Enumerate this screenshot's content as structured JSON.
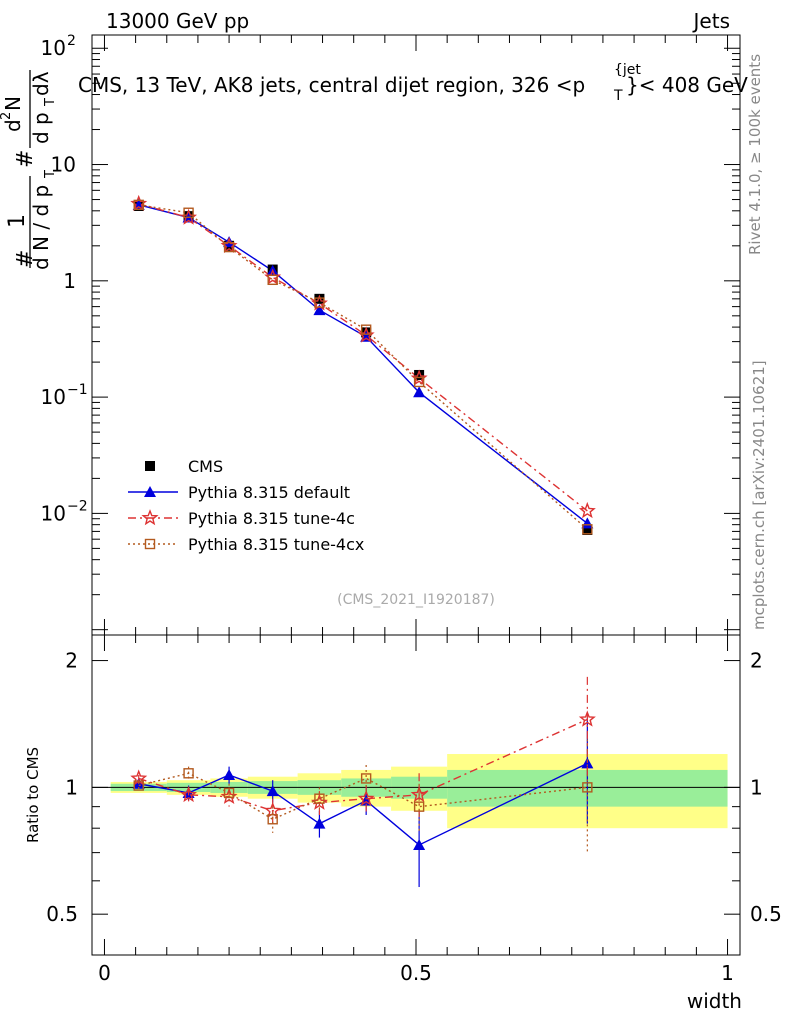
{
  "header": {
    "energy_label": "13000 GeV pp",
    "category_label": "Jets",
    "plot_title": "CMS, 13 TeV, AK8 jets, central dijet region, 326 <p",
    "plot_title_sup": "{jet",
    "plot_title_sub": "T",
    "plot_title_end": "}< 408 GeV"
  },
  "side_labels": {
    "rivet": "Rivet 4.1.0, ≥ 100k events",
    "mcplots": "mcplots.cern.ch [arXiv:2401.10621]"
  },
  "watermark": "(CMS_2021_I1920187)",
  "axes": {
    "x_title": "width",
    "ratio_title": "Ratio to CMS",
    "ylabel_left": {
      "hash": "#",
      "one": "1",
      "dn": "d N / d p",
      "t": "T",
      "hash2": "#",
      "d2n": "d",
      "sup2": "2",
      "n": "N",
      "dpt": "d p",
      "t2": "T",
      "dl": "dλ"
    },
    "main_yticks": [
      {
        "base": "10",
        "exp": "2"
      },
      {
        "base": "10",
        "exp": ""
      },
      {
        "base": "1",
        "exp": ""
      },
      {
        "base": "10",
        "exp": "−1"
      },
      {
        "base": "10",
        "exp": "−2"
      }
    ],
    "x_ticks": [
      "0",
      "0.5",
      "1"
    ],
    "ratio_ticks": [
      "2",
      "1",
      "0.5"
    ]
  },
  "legend": [
    {
      "label": "CMS",
      "color": "#000000",
      "marker": "square-filled"
    },
    {
      "label": "Pythia 8.315 default",
      "color": "#0000dd",
      "marker": "triangle-filled"
    },
    {
      "label": "Pythia 8.315 tune-4c",
      "color": "#dd3333",
      "marker": "star-open"
    },
    {
      "label": "Pythia 8.315 tune-4cx",
      "color": "#b35a1f",
      "marker": "square-open"
    }
  ],
  "chart_data": {
    "type": "scatter",
    "xlim": [
      -0.02,
      1.02
    ],
    "ylim_main": [
      0.0009,
      130
    ],
    "ylim_ratio": [
      0.4,
      2.3
    ],
    "yscale_main": "log",
    "yscale_ratio": "log",
    "x": [
      0.055,
      0.135,
      0.2,
      0.27,
      0.345,
      0.42,
      0.505,
      0.775
    ],
    "xerr": [
      0.045,
      0.035,
      0.03,
      0.04,
      0.035,
      0.04,
      0.045,
      0.225
    ],
    "data": {
      "name": "CMS",
      "values": [
        4.4,
        3.6,
        2.0,
        1.25,
        0.7,
        0.36,
        0.155,
        0.0072
      ],
      "ratio_band_inner": [
        0.02,
        0.025,
        0.03,
        0.035,
        0.04,
        0.05,
        0.06,
        0.1
      ],
      "ratio_band_outer": [
        0.03,
        0.04,
        0.05,
        0.06,
        0.08,
        0.1,
        0.12,
        0.2
      ]
    },
    "series": [
      {
        "name": "Pythia 8.315 default",
        "values": [
          4.5,
          3.5,
          2.15,
          1.22,
          0.56,
          0.33,
          0.11,
          0.0082
        ],
        "ratio": [
          1.02,
          0.97,
          1.07,
          0.98,
          0.82,
          0.93,
          0.73,
          1.14
        ],
        "ratio_err": [
          0.02,
          0.04,
          0.05,
          0.06,
          0.06,
          0.07,
          0.15,
          0.32
        ],
        "style": "solid"
      },
      {
        "name": "Pythia 8.315 tune-4c",
        "values": [
          4.6,
          3.5,
          2.0,
          1.07,
          0.64,
          0.34,
          0.145,
          0.0105
        ],
        "ratio": [
          1.05,
          0.96,
          0.95,
          0.88,
          0.92,
          0.94,
          0.96,
          1.45
        ],
        "ratio_err": [
          0.02,
          0.04,
          0.05,
          0.06,
          0.06,
          0.07,
          0.12,
          0.38
        ],
        "style": "dashdot"
      },
      {
        "name": "Pythia 8.315 tune-4cx",
        "values": [
          4.5,
          3.85,
          1.95,
          1.02,
          0.65,
          0.38,
          0.135,
          0.0073
        ],
        "ratio": [
          1.01,
          1.08,
          0.97,
          0.84,
          0.94,
          1.05,
          0.9,
          1.0
        ],
        "ratio_err": [
          0.02,
          0.04,
          0.05,
          0.06,
          0.06,
          0.08,
          0.12,
          0.3
        ],
        "style": "dotted"
      }
    ]
  }
}
